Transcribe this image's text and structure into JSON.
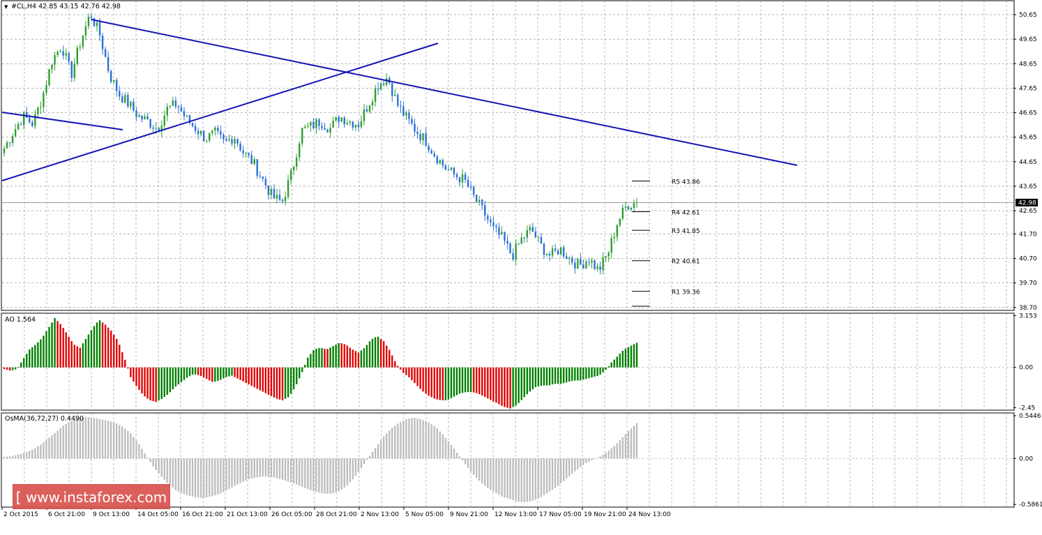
{
  "header": {
    "symbol_line": "#CL,H4  42.85 43.15 42.76 42.98",
    "ao_label": "AO 1.564",
    "osma_label": "OsMA(36,72,27) 0.4490"
  },
  "price_scale": {
    "ticks": [
      "50.65",
      "49.65",
      "48.65",
      "47.65",
      "46.65",
      "45.65",
      "44.65",
      "43.65",
      "42.65",
      "41.70",
      "40.70",
      "39.70",
      "38.70"
    ],
    "tick_values": [
      50.65,
      49.65,
      48.65,
      47.65,
      46.65,
      45.65,
      44.65,
      43.65,
      42.65,
      41.7,
      40.7,
      39.7,
      38.7
    ],
    "current_price": "42.98",
    "range": [
      38.58,
      51.22
    ]
  },
  "ao_scale": {
    "ticks": [
      "3.153",
      "0.00",
      "-2.45"
    ],
    "range": [
      -2.6,
      3.3
    ]
  },
  "osma_scale": {
    "ticks": [
      "0.5446",
      "0.00",
      "-0.5861"
    ],
    "range": [
      -0.62,
      0.58
    ]
  },
  "time_axis": [
    "2 Oct 2015",
    "6 Oct 21:00",
    "9 Oct 13:00",
    "14 Oct 05:00",
    "16 Oct 21:00",
    "21 Oct 13:00",
    "26 Oct 05:00",
    "28 Oct 21:00",
    "2 Nov 13:00",
    "5 Nov 05:00",
    "9 Nov 21:00",
    "12 Nov 13:00",
    "17 Nov 05:00",
    "19 Nov 21:00",
    "24 Nov 13:00"
  ],
  "pivots": [
    {
      "label": "R5 43.86",
      "value": 43.86
    },
    {
      "label": "R4 42.61",
      "value": 42.61
    },
    {
      "label": "R3 41.85",
      "value": 41.85
    },
    {
      "label": "R2 40.61",
      "value": 40.61
    },
    {
      "label": "R1 39.36",
      "value": 39.36
    }
  ],
  "logo_text": "[ www.instaforex.com ]",
  "colors": {
    "up": "#2e9e2e",
    "down": "#2a6fd6",
    "ao_up": "#008000",
    "ao_down": "#e00000",
    "osma": "#bdbdbd",
    "trend": "#1414b4",
    "grid": "#8c8c8c"
  },
  "chart_data": [
    {
      "type": "candlestick",
      "title": "#CL,H4",
      "ohlc_last": {
        "open": 42.85,
        "high": 43.15,
        "low": 42.76,
        "close": 42.98
      },
      "close_path": [
        45.2,
        45.9,
        46.5,
        46.2,
        47.3,
        48.8,
        49.4,
        48.2,
        49.6,
        50.7,
        49.8,
        48.2,
        47.4,
        47.0,
        46.5,
        46.3,
        46.0,
        46.8,
        47.0,
        46.4,
        46.0,
        45.6,
        45.8,
        45.4,
        45.7,
        45.0,
        44.6,
        43.9,
        43.2,
        43.0,
        44.2,
        45.9,
        46.1,
        46.3,
        46.0,
        46.5,
        46.3,
        46.2,
        47.0,
        47.8,
        48.1,
        47.0,
        46.4,
        45.9,
        45.5,
        44.9,
        44.4,
        44.1,
        43.9,
        43.2,
        42.6,
        41.9,
        41.5,
        40.8,
        41.5,
        41.9,
        41.2,
        40.8,
        41.1,
        40.7,
        40.4,
        40.7,
        40.2,
        40.9,
        42.2,
        42.9,
        42.98
      ],
      "trendlines_price": [
        {
          "from": [
            0,
            46.8
          ],
          "to": [
            11,
            46.2
          ]
        },
        {
          "from": [
            0,
            44.0
          ],
          "to": [
            40,
            49.9
          ]
        },
        {
          "from": [
            8,
            50.9
          ],
          "to": [
            72,
            44.8
          ]
        }
      ],
      "ylim": [
        38.58,
        51.22
      ]
    },
    {
      "type": "bar",
      "title": "AO",
      "value": 1.564,
      "series_hint": [
        -0.1,
        -0.2,
        -0.1,
        0.5,
        1.1,
        1.4,
        1.8,
        2.4,
        3.0,
        2.6,
        2.0,
        1.4,
        1.2,
        1.8,
        2.4,
        2.9,
        2.6,
        2.2,
        1.6,
        0.6,
        -0.6,
        -1.2,
        -1.7,
        -2.0,
        -2.1,
        -1.9,
        -1.6,
        -1.2,
        -0.9,
        -0.6,
        -0.4,
        -0.5,
        -0.7,
        -0.9,
        -0.8,
        -0.6,
        -0.5,
        -0.7,
        -0.9,
        -1.1,
        -1.3,
        -1.5,
        -1.7,
        -1.9,
        -2.0,
        -1.8,
        -1.2,
        -0.4,
        0.6,
        1.1,
        1.2,
        1.1,
        1.3,
        1.5,
        1.4,
        1.1,
        0.9,
        1.2,
        1.7,
        1.9,
        1.6,
        1.0,
        0.2,
        -0.3,
        -0.6,
        -1.0,
        -1.4,
        -1.7,
        -1.9,
        -2.0,
        -2.0,
        -1.8,
        -1.6,
        -1.5,
        -1.5,
        -1.6,
        -1.8,
        -2.0,
        -2.2,
        -2.4,
        -2.5,
        -2.3,
        -1.9,
        -1.5,
        -1.2,
        -1.1,
        -1.1,
        -1.0,
        -1.0,
        -0.9,
        -0.8,
        -0.8,
        -0.7,
        -0.6,
        -0.5,
        -0.2,
        0.3,
        0.7,
        1.1,
        1.3,
        1.5
      ],
      "ylim": [
        -2.6,
        3.3
      ]
    },
    {
      "type": "bar",
      "title": "OsMA(36,72,27)",
      "value": 0.449,
      "series_hint": [
        0.02,
        0.03,
        0.05,
        0.08,
        0.12,
        0.18,
        0.26,
        0.34,
        0.42,
        0.48,
        0.52,
        0.53,
        0.52,
        0.5,
        0.48,
        0.45,
        0.4,
        0.32,
        0.2,
        0.05,
        -0.1,
        -0.22,
        -0.32,
        -0.4,
        -0.45,
        -0.48,
        -0.5,
        -0.5,
        -0.48,
        -0.45,
        -0.4,
        -0.35,
        -0.3,
        -0.26,
        -0.24,
        -0.23,
        -0.24,
        -0.26,
        -0.29,
        -0.32,
        -0.36,
        -0.4,
        -0.43,
        -0.45,
        -0.45,
        -0.42,
        -0.35,
        -0.25,
        -0.12,
        0.02,
        0.15,
        0.28,
        0.38,
        0.45,
        0.5,
        0.52,
        0.5,
        0.46,
        0.4,
        0.3,
        0.18,
        0.05,
        -0.08,
        -0.2,
        -0.3,
        -0.38,
        -0.44,
        -0.49,
        -0.52,
        -0.55,
        -0.56,
        -0.54,
        -0.5,
        -0.44,
        -0.38,
        -0.3,
        -0.22,
        -0.14,
        -0.07,
        -0.02,
        0.02,
        0.08,
        0.16,
        0.26,
        0.36,
        0.45
      ],
      "ylim": [
        -0.62,
        0.58
      ]
    }
  ]
}
